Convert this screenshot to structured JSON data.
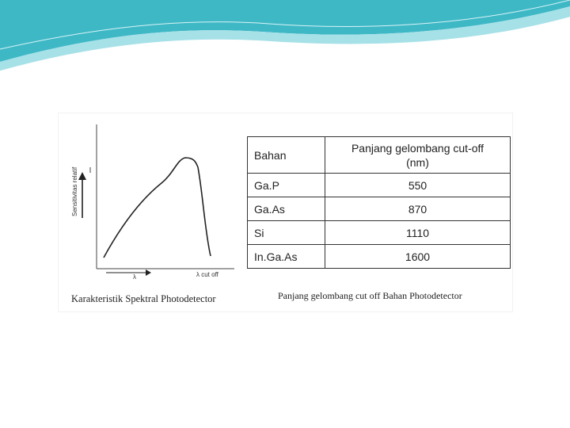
{
  "colors": {
    "header_teal": "#4fc3cf",
    "header_light": "#bfe9ee",
    "ink": "#222222"
  },
  "graph": {
    "ylabel": "Sensitivitas relatif",
    "xlabel": "λ",
    "cutoff_label": "λ cut off",
    "caption": "Karakteristik Spektral Photodetector"
  },
  "table": {
    "headers": {
      "material": "Bahan",
      "wavelength_line1": "Panjang gelombang cut-off",
      "wavelength_line2": "(nm)"
    },
    "rows": [
      {
        "material": "Ga.P",
        "value": "550"
      },
      {
        "material": "Ga.As",
        "value": "870"
      },
      {
        "material": "Si",
        "value": "1110"
      },
      {
        "material": "In.Ga.As",
        "value": "1600"
      }
    ],
    "caption": "Panjang gelombang cut off Bahan Photodetector"
  }
}
